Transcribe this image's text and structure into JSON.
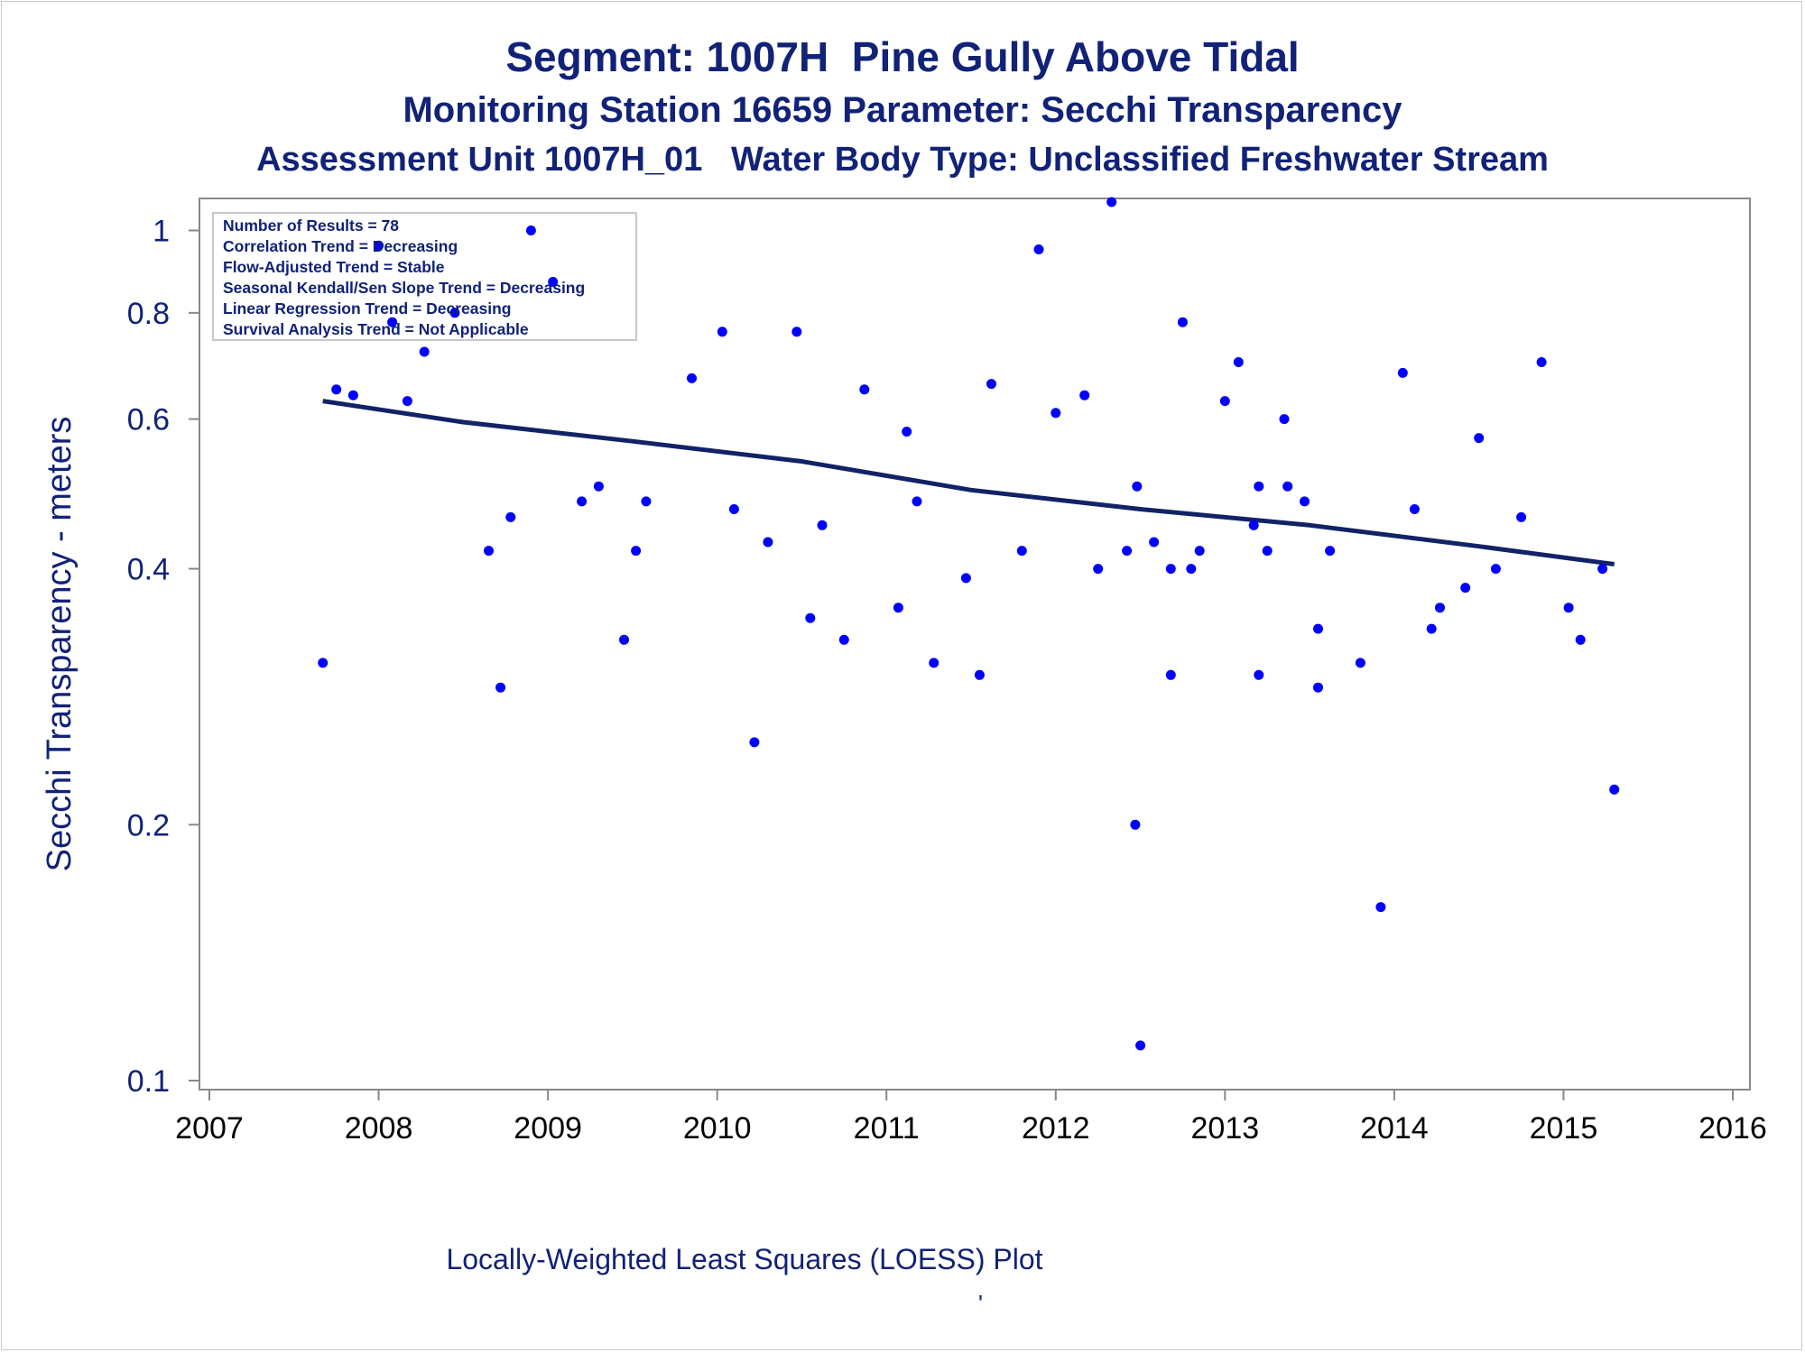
{
  "titles": {
    "line1": "Segment: 1007H  Pine Gully Above Tidal",
    "line2": "Monitoring Station 16659 Parameter: Secchi Transparency",
    "line3": "Assessment Unit 1007H_01   Water Body Type: Unclassified Freshwater Stream"
  },
  "footnote": "Locally-Weighted Least Squares (LOESS) Plot",
  "footnote_mark": "'",
  "colors": {
    "text": "#112277",
    "points": "#0000ff",
    "trend_line": "#112266",
    "axis": "#888888"
  },
  "chart_data": {
    "type": "scatter",
    "ylabel": "Secchi Transparency - meters",
    "xlabel": "",
    "y_scale": "log",
    "xlim": [
      2007,
      2016
    ],
    "ylim": [
      0.1,
      1.08
    ],
    "x_ticks": [
      "2007",
      "2008",
      "2009",
      "2010",
      "2011",
      "2012",
      "2013",
      "2014",
      "2015",
      "2016"
    ],
    "y_ticks": [
      0.1,
      0.2,
      0.4,
      0.6,
      0.8,
      1
    ],
    "y_tick_labels": [
      "0.1",
      "0.2",
      "0.4",
      "0.6",
      "0.8",
      "1"
    ],
    "grid": false,
    "legend_lines": [
      "Number of Results = 78",
      "Correlation Trend = Decreasing",
      "Flow-Adjusted Trend = Stable",
      "Seasonal Kendall/Sen Slope Trend = Decreasing",
      "Linear Regression Trend = Decreasing",
      "Survival Analysis Trend = Not Applicable"
    ],
    "legend_position": "top-left",
    "series": [
      {
        "type": "scatter",
        "points": [
          [
            2007.67,
            0.31
          ],
          [
            2007.75,
            0.65
          ],
          [
            2007.85,
            0.64
          ],
          [
            2008.0,
            0.96
          ],
          [
            2008.08,
            0.78
          ],
          [
            2008.17,
            0.63
          ],
          [
            2008.27,
            0.72
          ],
          [
            2008.45,
            0.8
          ],
          [
            2008.65,
            0.42
          ],
          [
            2008.72,
            0.29
          ],
          [
            2008.78,
            0.46
          ],
          [
            2008.9,
            1.0
          ],
          [
            2009.03,
            0.87
          ],
          [
            2009.2,
            0.48
          ],
          [
            2009.3,
            0.5
          ],
          [
            2009.45,
            0.33
          ],
          [
            2009.52,
            0.42
          ],
          [
            2009.58,
            0.48
          ],
          [
            2009.85,
            0.67
          ],
          [
            2010.03,
            0.76
          ],
          [
            2010.1,
            0.47
          ],
          [
            2010.22,
            0.25
          ],
          [
            2010.3,
            0.43
          ],
          [
            2010.47,
            0.76
          ],
          [
            2010.55,
            0.35
          ],
          [
            2010.62,
            0.45
          ],
          [
            2010.75,
            0.33
          ],
          [
            2010.87,
            0.65
          ],
          [
            2011.07,
            0.36
          ],
          [
            2011.12,
            0.58
          ],
          [
            2011.18,
            0.48
          ],
          [
            2011.28,
            0.31
          ],
          [
            2011.47,
            0.39
          ],
          [
            2011.55,
            0.3
          ],
          [
            2011.62,
            0.66
          ],
          [
            2011.8,
            0.42
          ],
          [
            2011.9,
            0.95
          ],
          [
            2012.0,
            0.61
          ],
          [
            2012.17,
            0.64
          ],
          [
            2012.25,
            0.4
          ],
          [
            2012.33,
            1.08
          ],
          [
            2012.42,
            0.42
          ],
          [
            2012.47,
            0.2
          ],
          [
            2012.48,
            0.5
          ],
          [
            2012.5,
            0.11
          ],
          [
            2012.58,
            0.43
          ],
          [
            2012.68,
            0.3
          ],
          [
            2012.68,
            0.4
          ],
          [
            2012.75,
            0.78
          ],
          [
            2012.8,
            0.4
          ],
          [
            2012.85,
            0.42
          ],
          [
            2013.0,
            0.63
          ],
          [
            2013.08,
            0.7
          ],
          [
            2013.17,
            0.45
          ],
          [
            2013.2,
            0.5
          ],
          [
            2013.2,
            0.3
          ],
          [
            2013.25,
            0.42
          ],
          [
            2013.35,
            0.6
          ],
          [
            2013.37,
            0.5
          ],
          [
            2013.47,
            0.48
          ],
          [
            2013.55,
            0.34
          ],
          [
            2013.55,
            0.29
          ],
          [
            2013.62,
            0.42
          ],
          [
            2013.8,
            0.31
          ],
          [
            2013.92,
            0.16
          ],
          [
            2014.05,
            0.68
          ],
          [
            2014.12,
            0.47
          ],
          [
            2014.22,
            0.34
          ],
          [
            2014.27,
            0.36
          ],
          [
            2014.42,
            0.38
          ],
          [
            2014.5,
            0.57
          ],
          [
            2014.6,
            0.4
          ],
          [
            2014.75,
            0.46
          ],
          [
            2014.87,
            0.7
          ],
          [
            2015.03,
            0.36
          ],
          [
            2015.1,
            0.33
          ],
          [
            2015.23,
            0.4
          ],
          [
            2015.3,
            0.22
          ]
        ]
      },
      {
        "type": "line",
        "points": [
          [
            2007.67,
            0.63
          ],
          [
            2008.5,
            0.595
          ],
          [
            2009.5,
            0.565
          ],
          [
            2010.5,
            0.535
          ],
          [
            2011.5,
            0.495
          ],
          [
            2012.5,
            0.47
          ],
          [
            2013.5,
            0.45
          ],
          [
            2014.5,
            0.425
          ],
          [
            2015.3,
            0.405
          ]
        ]
      }
    ]
  }
}
